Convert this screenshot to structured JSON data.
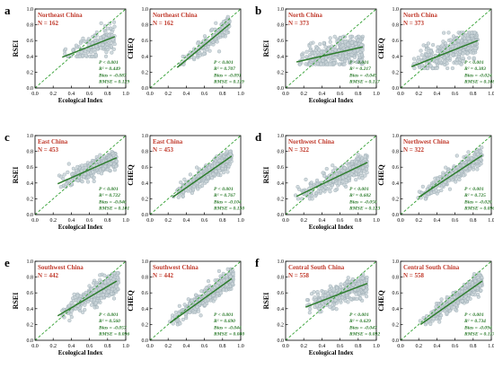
{
  "figure": {
    "panels": [
      {
        "letter": "a",
        "charts": [
          {
            "region": "Northeast China",
            "n": "N = 162",
            "ylabel": "RSEI",
            "stats": [
              "P < 0.001",
              "R² = 0.449",
              "Bias = -0.087",
              "RMSE = 0.129"
            ]
          },
          {
            "region": "Northeast China",
            "n": "N = 162",
            "ylabel": "CHEQ",
            "stats": [
              "P < 0.001",
              "R² = 0.707",
              "Bias = -0.091",
              "RMSE = 0.119"
            ]
          }
        ]
      },
      {
        "letter": "b",
        "charts": [
          {
            "region": "North China",
            "n": "N = 373",
            "ylabel": "RSEI",
            "stats": [
              "P < 0.001",
              "R² = 0.217",
              "Bias = -0.045",
              "RMSE = 0.117"
            ]
          },
          {
            "region": "North China",
            "n": "N = 373",
            "ylabel": "CHEQ",
            "stats": [
              "P < 0.001",
              "R² = 0.383",
              "Bias = -0.024",
              "RMSE = 0.108"
            ]
          }
        ]
      },
      {
        "letter": "c",
        "charts": [
          {
            "region": "East China",
            "n": "N = 453",
            "ylabel": "RSEI",
            "stats": [
              "P < 0.001",
              "R² = 0.722",
              "Bias = -0.046",
              "RMSE = 0.101"
            ]
          },
          {
            "region": "East China",
            "n": "N = 453",
            "ylabel": "CHEQ",
            "stats": [
              "P < 0.001",
              "R² = 0.767",
              "Bias = -0.104",
              "RMSE = 0.130"
            ]
          }
        ]
      },
      {
        "letter": "d",
        "charts": [
          {
            "region": "Northwest China",
            "n": "N = 322",
            "ylabel": "RSEI",
            "stats": [
              "P < 0.001",
              "R² = 0.602",
              "Bias = -0.050",
              "RMSE = 0.123"
            ]
          },
          {
            "region": "Northwest China",
            "n": "N = 322",
            "ylabel": "CHEQ",
            "stats": [
              "P < 0.001",
              "R² = 0.725",
              "Bias = -0.020",
              "RMSE = 0.096"
            ]
          }
        ]
      },
      {
        "letter": "e",
        "charts": [
          {
            "region": "Southwest China",
            "n": "N = 442",
            "ylabel": "RSEI",
            "stats": [
              "P < 0.001",
              "R² = 0.560",
              "Bias = -0.057",
              "RMSE = 0.096"
            ]
          },
          {
            "region": "Southwest China",
            "n": "N = 442",
            "ylabel": "CHEQ",
            "stats": [
              "P < 0.001",
              "R² = 0.690",
              "Bias = -0.044",
              "RMSE = 0.080"
            ]
          }
        ]
      },
      {
        "letter": "f",
        "charts": [
          {
            "region": "Central South China",
            "n": "N = 558",
            "ylabel": "RSEI",
            "stats": [
              "P < 0.001",
              "R² = 0.629",
              "Bias = -0.047",
              "RMSE = 0.092"
            ]
          },
          {
            "region": "Central South China",
            "n": "N = 558",
            "ylabel": "CHEQ",
            "stats": [
              "P < 0.001",
              "R² = 0.734",
              "Bias = -0.094",
              "RMSE = 0.117"
            ]
          }
        ]
      }
    ]
  },
  "chart_data": [
    {
      "type": "scatter",
      "title": "Northeast China",
      "subtitle": "N = 162",
      "xlabel": "Ecological Index",
      "ylabel": "RSEI",
      "xlim": [
        0,
        1
      ],
      "ylim": [
        0,
        1
      ],
      "xticks": [
        0.0,
        0.2,
        0.4,
        0.6,
        0.8,
        1.0
      ],
      "yticks": [
        0.0,
        0.2,
        0.4,
        0.6,
        0.8,
        1.0
      ],
      "x_range": [
        0.3,
        0.88
      ],
      "y_range": [
        0.4,
        0.9
      ],
      "fit_line": {
        "x": [
          0.3,
          0.88
        ],
        "y": [
          0.39,
          0.65
        ]
      },
      "reference_line": "1:1",
      "annotations": [
        "P < 0.001",
        "R² = 0.449",
        "Bias = -0.087",
        "RMSE = 0.129"
      ]
    },
    {
      "type": "scatter",
      "title": "Northeast China",
      "subtitle": "N = 162",
      "xlabel": "Ecological Index",
      "ylabel": "CHEQ",
      "xlim": [
        0,
        1
      ],
      "ylim": [
        0,
        1
      ],
      "xticks": [
        0.0,
        0.2,
        0.4,
        0.6,
        0.8,
        1.0
      ],
      "yticks": [
        0.0,
        0.2,
        0.4,
        0.6,
        0.8,
        1.0
      ],
      "x_range": [
        0.3,
        0.88
      ],
      "y_range": [
        0.3,
        0.9
      ],
      "fit_line": {
        "x": [
          0.3,
          0.88
        ],
        "y": [
          0.26,
          0.81
        ]
      },
      "reference_line": "1:1",
      "annotations": [
        "P < 0.001",
        "R² = 0.707",
        "Bias = -0.091",
        "RMSE = 0.119"
      ]
    },
    {
      "type": "scatter",
      "title": "North China",
      "subtitle": "N = 373",
      "xlabel": "Ecological Index",
      "ylabel": "RSEI",
      "xlim": [
        0,
        1
      ],
      "ylim": [
        0,
        1
      ],
      "xticks": [
        0.0,
        0.2,
        0.4,
        0.6,
        0.8,
        1.0
      ],
      "yticks": [
        0.0,
        0.2,
        0.4,
        0.6,
        0.8,
        1.0
      ],
      "x_range": [
        0.1,
        0.85
      ],
      "y_range": [
        0.3,
        0.65
      ],
      "fit_line": {
        "x": [
          0.12,
          0.85
        ],
        "y": [
          0.33,
          0.52
        ]
      },
      "reference_line": "1:1",
      "annotations": [
        "P < 0.001",
        "R² = 0.217",
        "Bias = -0.045",
        "RMSE = 0.117"
      ]
    },
    {
      "type": "scatter",
      "title": "North China",
      "subtitle": "N = 373",
      "xlabel": "Ecological Index",
      "ylabel": "CHEQ",
      "xlim": [
        0,
        1
      ],
      "ylim": [
        0,
        1
      ],
      "xticks": [
        0.0,
        0.2,
        0.4,
        0.6,
        0.8,
        1.0
      ],
      "yticks": [
        0.0,
        0.2,
        0.4,
        0.6,
        0.8,
        1.0
      ],
      "x_range": [
        0.1,
        0.85
      ],
      "y_range": [
        0.25,
        0.7
      ],
      "fit_line": {
        "x": [
          0.12,
          0.85
        ],
        "y": [
          0.27,
          0.6
        ]
      },
      "reference_line": "1:1",
      "annotations": [
        "P < 0.001",
        "R² = 0.383",
        "Bias = -0.024",
        "RMSE = 0.108"
      ]
    },
    {
      "type": "scatter",
      "title": "East China",
      "subtitle": "N = 453",
      "xlabel": "Ecological Index",
      "ylabel": "RSEI",
      "xlim": [
        0,
        1
      ],
      "ylim": [
        0,
        1
      ],
      "xticks": [
        0.0,
        0.2,
        0.4,
        0.6,
        0.8,
        1.0
      ],
      "yticks": [
        0.0,
        0.2,
        0.4,
        0.6,
        0.8,
        1.0
      ],
      "x_range": [
        0.25,
        0.9
      ],
      "y_range": [
        0.35,
        0.85
      ],
      "fit_line": {
        "x": [
          0.25,
          0.9
        ],
        "y": [
          0.39,
          0.72
        ]
      },
      "reference_line": "1:1",
      "annotations": [
        "P < 0.001",
        "R² = 0.722",
        "Bias = -0.046",
        "RMSE = 0.101"
      ]
    },
    {
      "type": "scatter",
      "title": "East China",
      "subtitle": "N = 453",
      "xlabel": "Ecological Index",
      "ylabel": "CHEQ",
      "xlim": [
        0,
        1
      ],
      "ylim": [
        0,
        1
      ],
      "xticks": [
        0.0,
        0.2,
        0.4,
        0.6,
        0.8,
        1.0
      ],
      "yticks": [
        0.0,
        0.2,
        0.4,
        0.6,
        0.8,
        1.0
      ],
      "x_range": [
        0.25,
        0.9
      ],
      "y_range": [
        0.2,
        0.85
      ],
      "fit_line": {
        "x": [
          0.25,
          0.9
        ],
        "y": [
          0.22,
          0.74
        ]
      },
      "reference_line": "1:1",
      "annotations": [
        "P < 0.001",
        "R² = 0.767",
        "Bias = -0.104",
        "RMSE = 0.130"
      ]
    },
    {
      "type": "scatter",
      "title": "Northwest China",
      "subtitle": "N = 322",
      "xlabel": "Ecological Index",
      "ylabel": "RSEI",
      "xlim": [
        0,
        1
      ],
      "ylim": [
        0,
        1
      ],
      "xticks": [
        0.0,
        0.2,
        0.4,
        0.6,
        0.8,
        1.0
      ],
      "yticks": [
        0.0,
        0.2,
        0.4,
        0.6,
        0.8,
        1.0
      ],
      "x_range": [
        0.1,
        0.9
      ],
      "y_range": [
        0.2,
        0.8
      ],
      "fit_line": {
        "x": [
          0.12,
          0.9
        ],
        "y": [
          0.23,
          0.66
        ]
      },
      "reference_line": "1:1",
      "annotations": [
        "P < 0.001",
        "R² = 0.602",
        "Bias = -0.050",
        "RMSE = 0.123"
      ]
    },
    {
      "type": "scatter",
      "title": "Northwest China",
      "subtitle": "N = 322",
      "xlabel": "Ecological Index",
      "ylabel": "CHEQ",
      "xlim": [
        0,
        1
      ],
      "ylim": [
        0,
        1
      ],
      "xticks": [
        0.0,
        0.2,
        0.4,
        0.6,
        0.8,
        1.0
      ],
      "yticks": [
        0.0,
        0.2,
        0.4,
        0.6,
        0.8,
        1.0
      ],
      "x_range": [
        0.15,
        0.9
      ],
      "y_range": [
        0.2,
        0.85
      ],
      "fit_line": {
        "x": [
          0.2,
          0.9
        ],
        "y": [
          0.22,
          0.75
        ]
      },
      "reference_line": "1:1",
      "annotations": [
        "P < 0.001",
        "R² = 0.725",
        "Bias = -0.020",
        "RMSE = 0.096"
      ]
    },
    {
      "type": "scatter",
      "title": "Southwest China",
      "subtitle": "N = 442",
      "xlabel": "Ecological Index",
      "ylabel": "RSEI",
      "xlim": [
        0,
        1
      ],
      "ylim": [
        0,
        1
      ],
      "xticks": [
        0.0,
        0.2,
        0.4,
        0.6,
        0.8,
        1.0
      ],
      "yticks": [
        0.0,
        0.2,
        0.4,
        0.6,
        0.8,
        1.0
      ],
      "x_range": [
        0.25,
        0.92
      ],
      "y_range": [
        0.25,
        0.85
      ],
      "fit_line": {
        "x": [
          0.25,
          0.9
        ],
        "y": [
          0.31,
          0.75
        ]
      },
      "reference_line": "1:1",
      "annotations": [
        "P < 0.001",
        "R² = 0.560",
        "Bias = -0.057",
        "RMSE = 0.096"
      ]
    },
    {
      "type": "scatter",
      "title": "Southwest China",
      "subtitle": "N = 442",
      "xlabel": "Ecological Index",
      "ylabel": "CHEQ",
      "xlim": [
        0,
        1
      ],
      "ylim": [
        0,
        1
      ],
      "xticks": [
        0.0,
        0.2,
        0.4,
        0.6,
        0.8,
        1.0
      ],
      "yticks": [
        0.0,
        0.2,
        0.4,
        0.6,
        0.8,
        1.0
      ],
      "x_range": [
        0.2,
        0.92
      ],
      "y_range": [
        0.2,
        0.9
      ],
      "fit_line": {
        "x": [
          0.22,
          0.9
        ],
        "y": [
          0.22,
          0.78
        ]
      },
      "reference_line": "1:1",
      "annotations": [
        "P < 0.001",
        "R² = 0.690",
        "Bias = -0.044",
        "RMSE = 0.080"
      ]
    },
    {
      "type": "scatter",
      "title": "Central South China",
      "subtitle": "N = 558",
      "xlabel": "Ecological Index",
      "ylabel": "RSEI",
      "xlim": [
        0,
        1
      ],
      "ylim": [
        0,
        1
      ],
      "xticks": [
        0.0,
        0.2,
        0.4,
        0.6,
        0.8,
        1.0
      ],
      "yticks": [
        0.0,
        0.2,
        0.4,
        0.6,
        0.8,
        1.0
      ],
      "x_range": [
        0.2,
        0.9
      ],
      "y_range": [
        0.35,
        0.85
      ],
      "fit_line": {
        "x": [
          0.22,
          0.9
        ],
        "y": [
          0.42,
          0.72
        ]
      },
      "reference_line": "1:1",
      "annotations": [
        "P < 0.001",
        "R² = 0.629",
        "Bias = -0.047",
        "RMSE = 0.092"
      ]
    },
    {
      "type": "scatter",
      "title": "Central South China",
      "subtitle": "N = 558",
      "xlabel": "Ecological Index",
      "ylabel": "CHEQ",
      "xlim": [
        0,
        1
      ],
      "ylim": [
        0,
        1
      ],
      "xticks": [
        0.0,
        0.2,
        0.4,
        0.6,
        0.8,
        1.0
      ],
      "yticks": [
        0.0,
        0.2,
        0.4,
        0.6,
        0.8,
        1.0
      ],
      "x_range": [
        0.2,
        0.9
      ],
      "y_range": [
        0.2,
        0.9
      ],
      "fit_line": {
        "x": [
          0.22,
          0.9
        ],
        "y": [
          0.2,
          0.75
        ]
      },
      "reference_line": "1:1",
      "annotations": [
        "P < 0.001",
        "R² = 0.734",
        "Bias = -0.094",
        "RMSE = 0.117"
      ]
    }
  ]
}
